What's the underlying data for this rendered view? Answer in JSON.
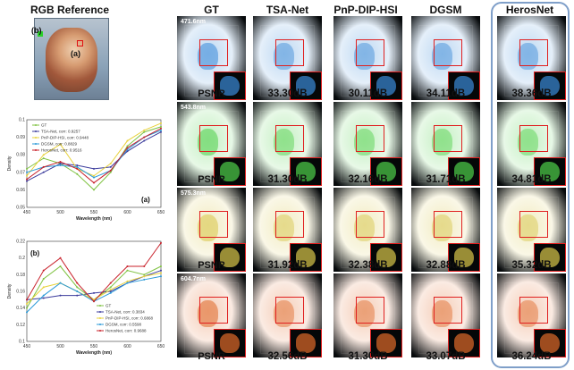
{
  "left": {
    "rgb_title": "RGB Reference",
    "label_a": "(a)",
    "label_b": "(b)"
  },
  "columns": [
    "GT",
    "TSA-Net",
    "PnP-DIP-HSI",
    "DGSM",
    "HerosNet"
  ],
  "rows": [
    {
      "wavelength": "471.6nm",
      "metric": "PSNR",
      "values": [
        "33.30dB",
        "30.11dB",
        "34.11dB",
        "38.36dB"
      ],
      "tint": "#3a8ad8"
    },
    {
      "wavelength": "543.8nm",
      "metric": "PSNR",
      "values": [
        "31.30dB",
        "32.16dB",
        "31.71dB",
        "34.81dB"
      ],
      "tint": "#4fd04a"
    },
    {
      "wavelength": "575.3nm",
      "metric": "PSNR",
      "values": [
        "31.92dB",
        "32.38dB",
        "32.88dB",
        "35.32dB"
      ],
      "tint": "#d8c64a"
    },
    {
      "wavelength": "604.7nm",
      "metric": "PSNR",
      "values": [
        "32.56dB",
        "31.30dB",
        "33.07dB",
        "36.24dB"
      ],
      "tint": "#e06a2a"
    }
  ],
  "chart_data": [
    {
      "type": "line",
      "title": "",
      "panel_label": "(a)",
      "xlabel": "Wavelength (nm)",
      "ylabel": "Density",
      "xlim": [
        450,
        650
      ],
      "ylim": [
        0.05,
        0.1
      ],
      "xticks": [
        450,
        500,
        550,
        600,
        650
      ],
      "yticks": [
        0.05,
        0.06,
        0.07,
        0.08,
        0.09,
        0.1
      ],
      "legend_position": "top-left",
      "x": [
        450,
        475,
        500,
        525,
        550,
        575,
        600,
        625,
        650
      ],
      "series": [
        {
          "name": "GT",
          "color": "#7fc241",
          "values": [
            0.072,
            0.078,
            0.075,
            0.069,
            0.06,
            0.07,
            0.085,
            0.093,
            0.096
          ]
        },
        {
          "name": "TSA-Net, corr: 0.9257",
          "color": "#3b3b9c",
          "values": [
            0.065,
            0.07,
            0.075,
            0.074,
            0.072,
            0.073,
            0.082,
            0.088,
            0.093
          ]
        },
        {
          "name": "PnP-DIP-HSI, corr: 0.9448",
          "color": "#e8d23a",
          "values": [
            0.068,
            0.08,
            0.086,
            0.072,
            0.068,
            0.075,
            0.088,
            0.094,
            0.098
          ]
        },
        {
          "name": "DGSM, corr: 0.8829",
          "color": "#2a9ad8",
          "values": [
            0.07,
            0.073,
            0.074,
            0.073,
            0.067,
            0.071,
            0.083,
            0.09,
            0.094
          ]
        },
        {
          "name": "HerosNet, corr: 0.9516",
          "color": "#c8202a",
          "values": [
            0.066,
            0.073,
            0.076,
            0.072,
            0.064,
            0.071,
            0.084,
            0.09,
            0.095
          ]
        }
      ]
    },
    {
      "type": "line",
      "title": "",
      "panel_label": "(b)",
      "xlabel": "Wavelength (nm)",
      "ylabel": "Density",
      "xlim": [
        450,
        650
      ],
      "ylim": [
        0.1,
        0.22
      ],
      "xticks": [
        450,
        500,
        550,
        600,
        650
      ],
      "yticks": [
        0.1,
        0.12,
        0.14,
        0.16,
        0.18,
        0.2,
        0.22
      ],
      "legend_position": "bottom-right",
      "x": [
        450,
        475,
        500,
        525,
        550,
        575,
        600,
        625,
        650
      ],
      "series": [
        {
          "name": "GT",
          "color": "#7fc241",
          "values": [
            0.14,
            0.175,
            0.19,
            0.165,
            0.15,
            0.165,
            0.185,
            0.18,
            0.19
          ]
        },
        {
          "name": "TSA-Net, corr: 0.3834",
          "color": "#3b3b9c",
          "values": [
            0.15,
            0.152,
            0.155,
            0.155,
            0.158,
            0.16,
            0.17,
            0.178,
            0.185
          ]
        },
        {
          "name": "PnP-DIP-HSI, corr: 0.6868",
          "color": "#e8d23a",
          "values": [
            0.145,
            0.165,
            0.17,
            0.16,
            0.15,
            0.162,
            0.172,
            0.178,
            0.182
          ]
        },
        {
          "name": "DGSM, corr: 0.5598",
          "color": "#2a9ad8",
          "values": [
            0.135,
            0.155,
            0.17,
            0.16,
            0.148,
            0.158,
            0.17,
            0.174,
            0.178
          ]
        },
        {
          "name": "HerosNet, corr: 0.9688",
          "color": "#c8202a",
          "values": [
            0.15,
            0.185,
            0.2,
            0.17,
            0.148,
            0.17,
            0.19,
            0.19,
            0.218
          ]
        }
      ]
    }
  ]
}
